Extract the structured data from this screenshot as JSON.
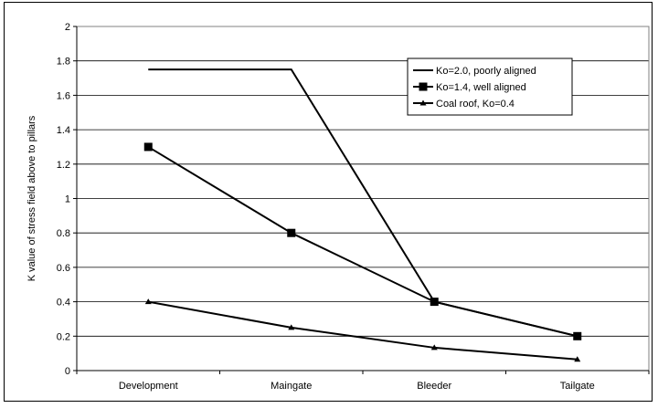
{
  "chart_data": {
    "type": "line",
    "categories": [
      "Development",
      "Maingate",
      "Bleeder",
      "Tailgate"
    ],
    "series": [
      {
        "name": "Ko=2.0, poorly aligned",
        "values": [
          1.75,
          1.75,
          0.4,
          0.2
        ],
        "marker": "none"
      },
      {
        "name": "Ko=1.4, well aligned",
        "values": [
          1.3,
          0.8,
          0.4,
          0.2
        ],
        "marker": "square"
      },
      {
        "name": "Coal roof, Ko=0.4",
        "values": [
          0.4,
          0.25,
          0.133,
          0.065
        ],
        "marker": "triangle"
      }
    ],
    "title": "",
    "xlabel": "",
    "ylabel": "K value of stress field above to pillars",
    "ylim": [
      0,
      2
    ],
    "yticks": [
      "0",
      "0.2",
      "0.4",
      "0.6",
      "0.8",
      "1",
      "1.2",
      "1.4",
      "1.6",
      "1.8",
      "2"
    ],
    "grid": true,
    "legend_position": "top-right",
    "colors": {
      "line": "#000000",
      "grid": "#000000",
      "background": "#ffffff"
    }
  }
}
